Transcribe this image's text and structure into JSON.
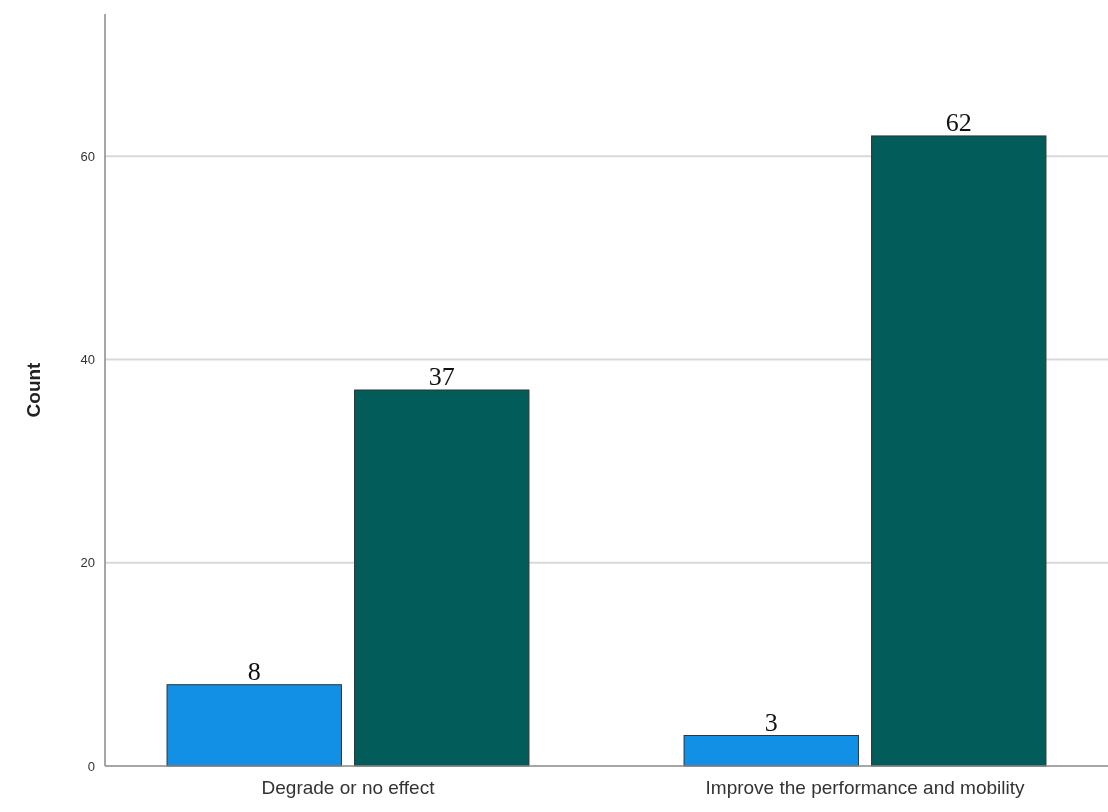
{
  "chart_data": {
    "type": "bar",
    "ylabel": "Count",
    "categories": [
      "Degrade or no effect",
      "Improve the performance and mobility"
    ],
    "series": [
      {
        "color": "#1190e6",
        "values": [
          8,
          3
        ]
      },
      {
        "color": "#025c5a",
        "values": [
          37,
          62
        ]
      }
    ],
    "ylim": [
      0,
      74
    ],
    "yticks": [
      0,
      20,
      40,
      60
    ],
    "grid": "y",
    "data_labels": true
  }
}
